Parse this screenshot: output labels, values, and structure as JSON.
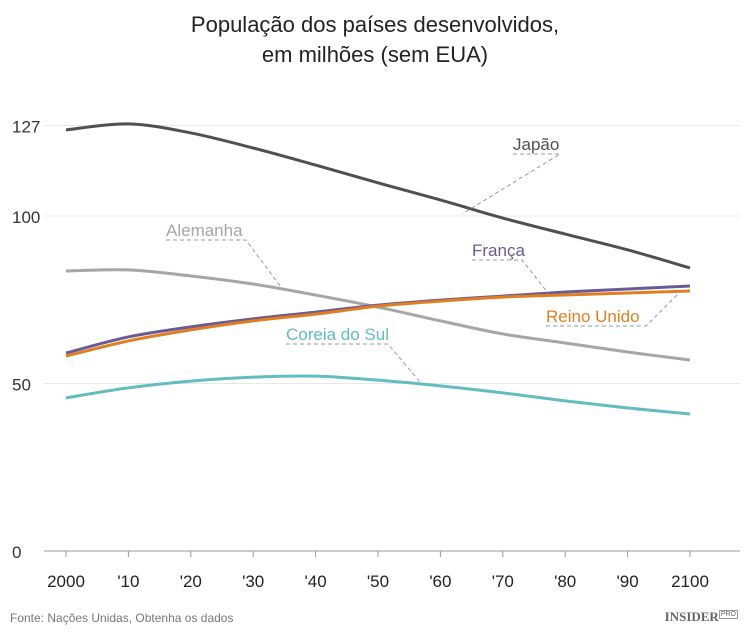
{
  "chart_data": {
    "type": "line",
    "title": "População dos países desenvolvidos,",
    "subtitle": "em milhões (sem EUA)",
    "x": [
      2000,
      2010,
      2020,
      2030,
      2040,
      2050,
      2060,
      2070,
      2080,
      2090,
      2100
    ],
    "xtick_labels": [
      "2000",
      "'10",
      "'20",
      "'30",
      "'40",
      "'50",
      "'60",
      "'70",
      "'80",
      "'90",
      "2100"
    ],
    "yticks": [
      0,
      50,
      100,
      127
    ],
    "ytick_labels": [
      "0",
      "50",
      "100",
      "127"
    ],
    "ylim": [
      0,
      127
    ],
    "grid": true,
    "series": [
      {
        "name": "Japão",
        "color": "#505050",
        "values": [
          125.7,
          127.5,
          124.8,
          120.3,
          115.2,
          109.9,
          104.8,
          99.4,
          94.6,
          89.9,
          84.5
        ]
      },
      {
        "name": "Alemanha",
        "color": "#a6a6a6",
        "values": [
          83.6,
          83.9,
          82.1,
          79.7,
          76.4,
          72.8,
          68.7,
          64.8,
          62.1,
          59.4,
          57.0
        ]
      },
      {
        "name": "França",
        "color": "#6a5a96",
        "values": [
          59.1,
          63.9,
          66.9,
          69.3,
          71.3,
          73.4,
          74.9,
          76.1,
          77.3,
          78.2,
          79.1
        ]
      },
      {
        "name": "Reino Unido",
        "color": "#e07f22",
        "values": [
          58.2,
          62.7,
          66.0,
          68.7,
          70.7,
          73.1,
          74.6,
          75.8,
          76.4,
          77.0,
          77.6
        ]
      },
      {
        "name": "Coreia do Sul",
        "color": "#63bcc0",
        "values": [
          45.7,
          48.7,
          50.7,
          51.9,
          52.2,
          51.0,
          49.3,
          47.2,
          44.8,
          42.7,
          40.9
        ]
      }
    ]
  },
  "footer": {
    "source": "Fonte: Nações Unidas, Obtenha os dados",
    "logo": "INSIDER",
    "logo_badge": "PRO"
  }
}
